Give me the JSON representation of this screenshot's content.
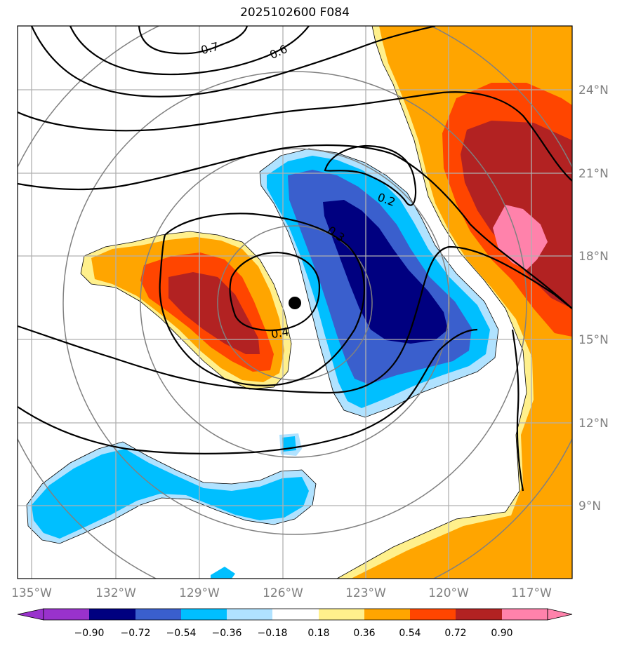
{
  "title": "2025102600 F084",
  "lon_labels": [
    "135°W",
    "132°W",
    "129°W",
    "126°W",
    "123°W",
    "120°W",
    "117°W"
  ],
  "lat_labels": [
    "24°N",
    "21°N",
    "18°N",
    "15°N",
    "12°N",
    "9°N"
  ],
  "contour_labels": [
    "0.7",
    "0.6",
    "0.2",
    "0.3",
    "0.4"
  ],
  "colorbar": {
    "ticks": [
      "−0.90",
      "−0.72",
      "−0.54",
      "−0.36",
      "−0.18",
      "0.18",
      "0.36",
      "0.54",
      "0.72",
      "0.90"
    ],
    "colors": [
      "#9932cc",
      "#000080",
      "#3a5fcd",
      "#00bfff",
      "#b0e2ff",
      "#ffffff",
      "#fff08c",
      "#ffa500",
      "#ff4500",
      "#b22222",
      "#ff82ab"
    ]
  },
  "storm_center": {
    "lon": -125.6,
    "lat": 16.3
  },
  "colors": {
    "grid": "#b0b0b0",
    "range_rings": "#808080",
    "contours": "#000000"
  }
}
